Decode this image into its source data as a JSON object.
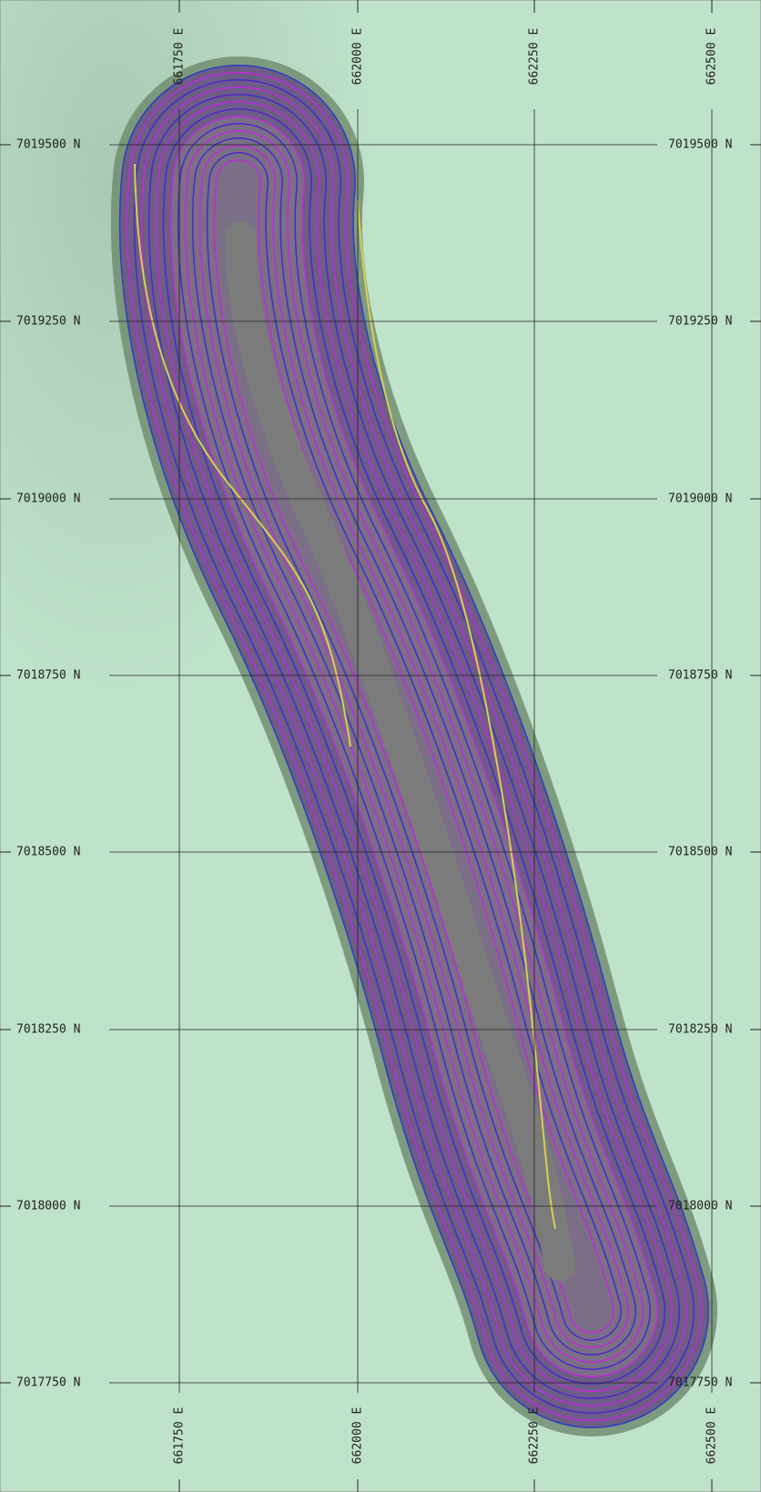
{
  "grid": {
    "eastings": [
      "661750 E",
      "662000 E",
      "662250 E",
      "662500 E"
    ],
    "northings": [
      "7019500 N",
      "7019250 N",
      "7019000 N",
      "7018750 N",
      "7018500 N",
      "7018250 N",
      "7018000 N",
      "7017750 N"
    ]
  }
}
